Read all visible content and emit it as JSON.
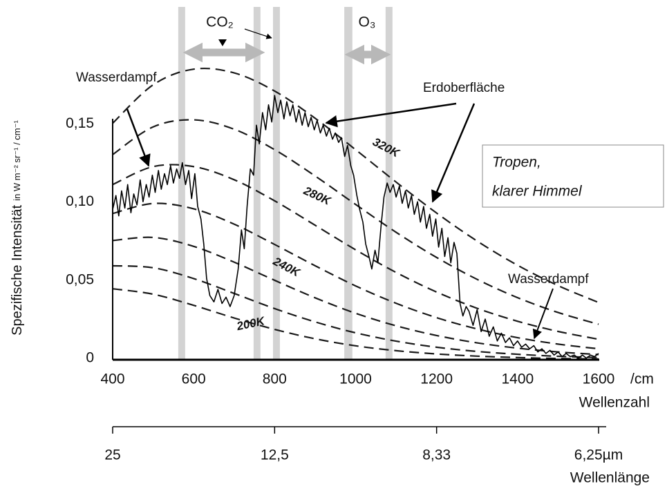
{
  "chart_data": {
    "type": "spectrum",
    "ylabel": "Spezifische Intensität",
    "ylabel_units": "in W m⁻² sr⁻¹ / cm⁻¹",
    "xlabel": "Wellenzahl",
    "x_unit": "/cm",
    "x2label": "Wellenlänge",
    "xlim": [
      400,
      1600
    ],
    "ylim": [
      0,
      0.2
    ],
    "xticks": [
      400,
      600,
      800,
      1000,
      1200,
      1400,
      1600
    ],
    "yticks": [
      0,
      {
        "value": 0.05,
        "label": "0,05"
      },
      {
        "value": 0.1,
        "label": "0,10"
      },
      {
        "value": 0.15,
        "label": "0,15"
      }
    ],
    "x2ticks": [
      {
        "value": 400,
        "label": "25"
      },
      {
        "value": 800,
        "label": "12,5"
      },
      {
        "value": 1200,
        "label": "8,33"
      },
      {
        "value": 1600,
        "label": "6,25µm"
      }
    ],
    "grid": false,
    "curve_color": "#1a1a1a",
    "spectrum_color": "#000000",
    "band_color": "#c4c4c4",
    "bands": [
      [
        562,
        579
      ],
      [
        748,
        765
      ],
      [
        796,
        813
      ],
      [
        972,
        992
      ],
      [
        1074,
        1091
      ]
    ],
    "x": [
      400,
      500,
      600,
      700,
      800,
      900,
      1000,
      1100,
      1200,
      1300,
      1400,
      1500,
      1600
    ],
    "series": [
      {
        "name": "320K",
        "values": [
          0.1512,
          0.1758,
          0.1858,
          0.1834,
          0.1718,
          0.1544,
          0.1343,
          0.1136,
          0.0938,
          0.0759,
          0.0604,
          0.0474,
          0.0366
        ]
      },
      {
        "name": null,
        "values": [
          0.1312,
          0.1489,
          0.1534,
          0.1474,
          0.1343,
          0.1175,
          0.0993,
          0.0815,
          0.0654,
          0.0514,
          0.0397,
          0.0302,
          0.0227
        ]
      },
      {
        "name": "280K",
        "values": [
          0.112,
          0.1235,
          0.1235,
          0.1151,
          0.1016,
          0.086,
          0.0703,
          0.0558,
          0.0433,
          0.0329,
          0.0246,
          0.0181,
          0.0131
        ]
      },
      {
        "name": null,
        "values": [
          0.0935,
          0.0999,
          0.0965,
          0.0867,
          0.0737,
          0.0601,
          0.0472,
          0.0361,
          0.0269,
          0.0197,
          0.0141,
          0.01,
          0.007
        ]
      },
      {
        "name": "240K",
        "values": [
          0.0762,
          0.0782,
          0.0725,
          0.0624,
          0.0508,
          0.0396,
          0.0297,
          0.0217,
          0.0155,
          0.0108,
          0.0074,
          0.005,
          0.0033
        ]
      },
      {
        "name": null,
        "values": [
          0.0601,
          0.0588,
          0.0519,
          0.0424,
          0.0327,
          0.0242,
          0.0172,
          0.0119,
          0.008,
          0.0053,
          0.0035,
          0.0022,
          0.0014
        ]
      },
      {
        "name": "200K",
        "values": [
          0.0454,
          0.0419,
          0.0348,
          0.0267,
          0.0194,
          0.0134,
          0.0089,
          0.0058,
          0.0037,
          0.0023,
          0.0014,
          0.0008,
          0.0005
        ]
      }
    ],
    "spectrum": {
      "x": [
        400,
        408,
        415,
        422,
        430,
        437,
        445,
        452,
        460,
        468,
        475,
        483,
        490,
        498,
        505,
        513,
        520,
        528,
        535,
        543,
        550,
        558,
        565,
        572,
        580,
        588,
        595,
        603,
        610,
        618,
        625,
        632,
        640,
        650,
        660,
        670,
        680,
        690,
        700,
        710,
        718,
        725,
        732,
        740,
        748,
        755,
        762,
        770,
        778,
        785,
        793,
        800,
        808,
        815,
        823,
        830,
        838,
        845,
        853,
        860,
        868,
        875,
        883,
        890,
        898,
        905,
        913,
        920,
        928,
        935,
        943,
        950,
        958,
        965,
        973,
        980,
        988,
        995,
        1003,
        1010,
        1018,
        1025,
        1033,
        1040,
        1048,
        1055,
        1063,
        1070,
        1078,
        1085,
        1093,
        1100,
        1108,
        1115,
        1123,
        1130,
        1138,
        1145,
        1153,
        1160,
        1168,
        1175,
        1183,
        1190,
        1198,
        1205,
        1213,
        1220,
        1228,
        1235,
        1243,
        1250,
        1258,
        1265,
        1273,
        1280,
        1290,
        1300,
        1310,
        1320,
        1330,
        1340,
        1350,
        1360,
        1370,
        1380,
        1390,
        1400,
        1410,
        1420,
        1430,
        1440,
        1450,
        1460,
        1470,
        1480,
        1490,
        1500,
        1510,
        1520,
        1530,
        1540,
        1550,
        1560,
        1570,
        1580,
        1590,
        1600
      ],
      "values": [
        0.096,
        0.105,
        0.092,
        0.108,
        0.097,
        0.112,
        0.094,
        0.106,
        0.099,
        0.115,
        0.101,
        0.112,
        0.104,
        0.118,
        0.107,
        0.121,
        0.109,
        0.119,
        0.112,
        0.124,
        0.113,
        0.122,
        0.116,
        0.126,
        0.112,
        0.121,
        0.103,
        0.119,
        0.098,
        0.09,
        0.074,
        0.052,
        0.041,
        0.037,
        0.045,
        0.036,
        0.04,
        0.034,
        0.041,
        0.058,
        0.083,
        0.071,
        0.098,
        0.122,
        0.118,
        0.15,
        0.138,
        0.158,
        0.147,
        0.163,
        0.152,
        0.169,
        0.158,
        0.166,
        0.154,
        0.165,
        0.156,
        0.163,
        0.152,
        0.16,
        0.15,
        0.158,
        0.149,
        0.155,
        0.147,
        0.153,
        0.145,
        0.15,
        0.143,
        0.148,
        0.141,
        0.145,
        0.139,
        0.142,
        0.13,
        0.137,
        0.124,
        0.118,
        0.105,
        0.096,
        0.088,
        0.074,
        0.066,
        0.058,
        0.07,
        0.062,
        0.086,
        0.104,
        0.113,
        0.107,
        0.112,
        0.104,
        0.111,
        0.1,
        0.108,
        0.097,
        0.105,
        0.093,
        0.101,
        0.088,
        0.098,
        0.084,
        0.093,
        0.079,
        0.09,
        0.072,
        0.084,
        0.066,
        0.078,
        0.062,
        0.075,
        0.068,
        0.036,
        0.028,
        0.034,
        0.031,
        0.022,
        0.032,
        0.018,
        0.026,
        0.015,
        0.021,
        0.012,
        0.017,
        0.011,
        0.014,
        0.009,
        0.012,
        0.008,
        0.01,
        0.007,
        0.009,
        0.005,
        0.007,
        0.004,
        0.006,
        0.003,
        0.005,
        0.002,
        0.004,
        0.002,
        0.003,
        0.001,
        0.003,
        0.001,
        0.003,
        0.002,
        0.004
      ]
    },
    "annotations": {
      "co2": "CO₂",
      "o3": "O₃",
      "water_left": "Wasserdampf",
      "surface": "Erdoberfläche",
      "water_right": "Wasserdampf",
      "box": [
        "Tropen,",
        "klarer Himmel"
      ]
    }
  }
}
